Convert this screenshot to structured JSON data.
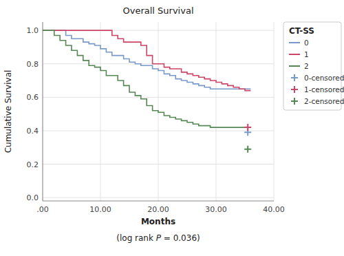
{
  "chart_data": {
    "type": "step",
    "title": "Overall Survival",
    "x_label": "Months",
    "y_label": "Cumulative Survival",
    "annotation": [
      "(log rank ",
      "P",
      " = 0.036)"
    ],
    "legend_title": "CT-SS",
    "legend": "right",
    "grid": true,
    "xlim": [
      0,
      40
    ],
    "ylim": [
      -0.02,
      1.05
    ],
    "xticks": [
      {
        "value": 0,
        "label": ".00"
      },
      {
        "value": 10,
        "label": "10.00"
      },
      {
        "value": 20,
        "label": "20.00"
      },
      {
        "value": 30,
        "label": "30.00"
      },
      {
        "value": 40,
        "label": "40.00"
      }
    ],
    "yticks": [
      {
        "value": 0.0,
        "label": "0.0"
      },
      0.2,
      0.4,
      0.6,
      0.8,
      {
        "value": 1.0,
        "label": "1.0"
      }
    ],
    "series": [
      {
        "name": "0",
        "type": "step",
        "color": "#7799CC",
        "x": [
          0,
          3,
          4,
          5,
          7,
          8,
          9,
          10,
          11,
          12,
          14,
          15,
          16,
          17,
          19,
          20,
          21,
          22,
          23,
          24,
          25,
          26,
          27,
          28,
          29,
          30,
          31,
          32,
          33,
          35,
          36
        ],
        "values": [
          1.0,
          1.0,
          0.97,
          0.95,
          0.93,
          0.92,
          0.91,
          0.89,
          0.87,
          0.85,
          0.83,
          0.81,
          0.8,
          0.79,
          0.77,
          0.76,
          0.74,
          0.73,
          0.71,
          0.7,
          0.69,
          0.68,
          0.67,
          0.66,
          0.65,
          0.65,
          0.65,
          0.65,
          0.65,
          0.65,
          0.65
        ]
      },
      {
        "name": "1",
        "type": "step",
        "color": "#CC4466",
        "x": [
          0,
          8,
          9,
          11,
          12,
          13,
          14,
          17,
          18,
          19,
          21,
          22,
          24,
          25,
          26,
          27,
          28,
          29,
          30,
          31,
          32,
          33,
          34,
          35,
          36
        ],
        "values": [
          1.0,
          1.0,
          1.0,
          1.0,
          0.97,
          0.95,
          0.93,
          0.91,
          0.85,
          0.8,
          0.78,
          0.77,
          0.75,
          0.74,
          0.73,
          0.72,
          0.71,
          0.7,
          0.69,
          0.68,
          0.67,
          0.66,
          0.65,
          0.64,
          0.64
        ]
      },
      {
        "name": "2",
        "type": "step",
        "color": "#558855",
        "x": [
          0,
          2,
          3,
          4,
          5,
          6,
          7,
          8,
          9,
          10,
          11,
          13,
          14,
          15,
          16,
          17,
          18,
          19,
          20,
          21,
          22,
          23,
          24,
          25,
          26,
          27,
          28,
          29,
          30,
          31,
          32,
          33,
          34,
          35,
          36
        ],
        "values": [
          1.0,
          0.97,
          0.94,
          0.91,
          0.88,
          0.85,
          0.82,
          0.79,
          0.78,
          0.76,
          0.73,
          0.7,
          0.67,
          0.63,
          0.61,
          0.59,
          0.55,
          0.52,
          0.51,
          0.49,
          0.48,
          0.47,
          0.46,
          0.45,
          0.44,
          0.43,
          0.43,
          0.42,
          0.42,
          0.42,
          0.42,
          0.42,
          0.42,
          0.42,
          0.42
        ]
      },
      {
        "name": "0-censored",
        "type": "scatter",
        "marker": "plus",
        "color": "#7799CC",
        "x": [
          35.5
        ],
        "values": [
          0.39
        ]
      },
      {
        "name": "1-censored",
        "type": "scatter",
        "marker": "plus",
        "color": "#CC4466",
        "x": [
          35.5
        ],
        "values": [
          0.42
        ]
      },
      {
        "name": "2-censored",
        "type": "scatter",
        "marker": "plus",
        "color": "#558855",
        "x": [
          35.5
        ],
        "values": [
          0.29
        ]
      }
    ]
  }
}
